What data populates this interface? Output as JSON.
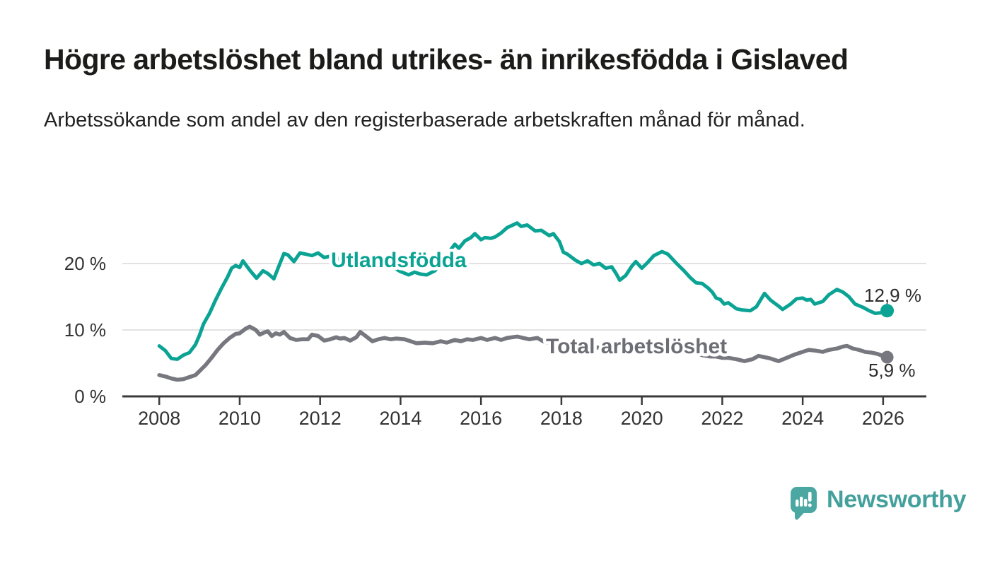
{
  "header": {
    "title": "Högre arbetslöshet bland utrikes- än inrikesfödda i Gislaved",
    "subtitle": "Arbetssökande som andel av den registerbaserade arbetskraften månad för månad."
  },
  "branding": {
    "wordmark": "Newsworthy",
    "logo_icon": "speech-bubble-bar-chart-icon",
    "brand_color": "#4aa7a2"
  },
  "chart_data": {
    "type": "line",
    "title": "Högre arbetslöshet bland utrikes- än inrikesfödda i Gislaved",
    "subtitle": "Arbetssökande som andel av den registerbaserade arbetskraften månad för månad.",
    "unit": "%",
    "legend_position": "inline-labels",
    "grid": true,
    "x_axis": {
      "ticks": [
        2008,
        2010,
        2012,
        2014,
        2016,
        2018,
        2020,
        2022,
        2024,
        2026
      ],
      "range": [
        2007.1,
        2027.1
      ]
    },
    "y_axis": {
      "ticks": [
        {
          "value": 0,
          "label": "0 %"
        },
        {
          "value": 10,
          "label": "10 %"
        },
        {
          "value": 20,
          "label": "20 %"
        }
      ],
      "range": [
        0,
        28
      ]
    },
    "colors": {
      "axis": "#3a3a3a",
      "gridline": "#d9d9d9",
      "value_label": "#2d2d2d"
    },
    "series": [
      {
        "name": "Utlandsfödda",
        "color": "#0ba394",
        "end_value": 12.9,
        "end_label": "12,9 %",
        "points": [
          [
            2008.0,
            7.6
          ],
          [
            2008.15,
            6.9
          ],
          [
            2008.3,
            5.7
          ],
          [
            2008.45,
            5.6
          ],
          [
            2008.6,
            6.2
          ],
          [
            2008.75,
            6.6
          ],
          [
            2008.9,
            7.8
          ],
          [
            2009.0,
            9.2
          ],
          [
            2009.1,
            10.9
          ],
          [
            2009.25,
            12.5
          ],
          [
            2009.4,
            14.5
          ],
          [
            2009.55,
            16.3
          ],
          [
            2009.7,
            18.0
          ],
          [
            2009.8,
            19.3
          ],
          [
            2009.9,
            19.7
          ],
          [
            2010.0,
            19.4
          ],
          [
            2010.08,
            20.4
          ],
          [
            2010.25,
            19.0
          ],
          [
            2010.42,
            17.8
          ],
          [
            2010.58,
            18.9
          ],
          [
            2010.7,
            18.5
          ],
          [
            2010.85,
            17.7
          ],
          [
            2011.0,
            20.0
          ],
          [
            2011.1,
            21.5
          ],
          [
            2011.2,
            21.3
          ],
          [
            2011.35,
            20.3
          ],
          [
            2011.5,
            21.6
          ],
          [
            2011.65,
            21.4
          ],
          [
            2011.8,
            21.2
          ],
          [
            2011.95,
            21.6
          ],
          [
            2012.1,
            20.9
          ],
          [
            2012.25,
            21.1
          ],
          [
            2012.4,
            20.4
          ],
          [
            2012.55,
            21.2
          ],
          [
            2012.7,
            20.9
          ],
          [
            2012.85,
            20.5
          ],
          [
            2013.0,
            21.0
          ],
          [
            2013.2,
            20.6
          ],
          [
            2013.4,
            20.1
          ],
          [
            2013.55,
            20.4
          ],
          [
            2013.7,
            19.8
          ],
          [
            2013.85,
            19.3
          ],
          [
            2014.0,
            18.8
          ],
          [
            2014.2,
            18.3
          ],
          [
            2014.35,
            18.7
          ],
          [
            2014.5,
            18.4
          ],
          [
            2014.65,
            18.3
          ],
          [
            2014.85,
            18.9
          ],
          [
            2015.0,
            19.8
          ],
          [
            2015.1,
            20.6
          ],
          [
            2015.25,
            22.1
          ],
          [
            2015.35,
            22.9
          ],
          [
            2015.45,
            22.3
          ],
          [
            2015.6,
            23.4
          ],
          [
            2015.75,
            23.9
          ],
          [
            2015.85,
            24.5
          ],
          [
            2016.0,
            23.6
          ],
          [
            2016.1,
            23.9
          ],
          [
            2016.25,
            23.8
          ],
          [
            2016.35,
            24.0
          ],
          [
            2016.5,
            24.6
          ],
          [
            2016.65,
            25.4
          ],
          [
            2016.9,
            26.1
          ],
          [
            2017.0,
            25.6
          ],
          [
            2017.15,
            25.8
          ],
          [
            2017.35,
            24.9
          ],
          [
            2017.5,
            25.0
          ],
          [
            2017.7,
            24.2
          ],
          [
            2017.8,
            24.5
          ],
          [
            2017.95,
            23.3
          ],
          [
            2018.05,
            21.7
          ],
          [
            2018.15,
            21.4
          ],
          [
            2018.35,
            20.5
          ],
          [
            2018.5,
            20.0
          ],
          [
            2018.65,
            20.4
          ],
          [
            2018.8,
            19.8
          ],
          [
            2018.95,
            20.0
          ],
          [
            2019.1,
            19.3
          ],
          [
            2019.25,
            19.5
          ],
          [
            2019.35,
            18.6
          ],
          [
            2019.45,
            17.5
          ],
          [
            2019.6,
            18.2
          ],
          [
            2019.75,
            19.6
          ],
          [
            2019.85,
            20.3
          ],
          [
            2020.0,
            19.3
          ],
          [
            2020.15,
            20.2
          ],
          [
            2020.3,
            21.2
          ],
          [
            2020.5,
            21.8
          ],
          [
            2020.65,
            21.4
          ],
          [
            2020.85,
            20.1
          ],
          [
            2021.05,
            18.9
          ],
          [
            2021.2,
            17.9
          ],
          [
            2021.35,
            17.1
          ],
          [
            2021.5,
            17.0
          ],
          [
            2021.65,
            16.3
          ],
          [
            2021.75,
            15.7
          ],
          [
            2021.85,
            14.8
          ],
          [
            2021.95,
            14.6
          ],
          [
            2022.05,
            13.9
          ],
          [
            2022.15,
            14.1
          ],
          [
            2022.35,
            13.2
          ],
          [
            2022.5,
            13.0
          ],
          [
            2022.7,
            12.9
          ],
          [
            2022.85,
            13.5
          ],
          [
            2023.05,
            15.5
          ],
          [
            2023.2,
            14.5
          ],
          [
            2023.4,
            13.6
          ],
          [
            2023.5,
            13.1
          ],
          [
            2023.7,
            13.9
          ],
          [
            2023.85,
            14.7
          ],
          [
            2024.0,
            14.8
          ],
          [
            2024.1,
            14.5
          ],
          [
            2024.2,
            14.6
          ],
          [
            2024.3,
            13.9
          ],
          [
            2024.5,
            14.3
          ],
          [
            2024.65,
            15.3
          ],
          [
            2024.85,
            16.1
          ],
          [
            2025.0,
            15.7
          ],
          [
            2025.15,
            15.0
          ],
          [
            2025.3,
            13.9
          ],
          [
            2025.5,
            13.4
          ],
          [
            2025.65,
            12.9
          ],
          [
            2025.8,
            12.5
          ],
          [
            2025.95,
            12.6
          ],
          [
            2026.1,
            12.9
          ]
        ]
      },
      {
        "name": "Total arbetslöshet",
        "color": "#77777f",
        "end_value": 5.9,
        "end_label": "5,9 %",
        "points": [
          [
            2008.0,
            3.2
          ],
          [
            2008.15,
            3.0
          ],
          [
            2008.3,
            2.7
          ],
          [
            2008.45,
            2.5
          ],
          [
            2008.6,
            2.6
          ],
          [
            2008.75,
            2.9
          ],
          [
            2008.9,
            3.2
          ],
          [
            2009.0,
            3.8
          ],
          [
            2009.15,
            4.7
          ],
          [
            2009.3,
            5.8
          ],
          [
            2009.45,
            7.0
          ],
          [
            2009.6,
            8.0
          ],
          [
            2009.75,
            8.8
          ],
          [
            2009.9,
            9.4
          ],
          [
            2010.0,
            9.5
          ],
          [
            2010.15,
            10.2
          ],
          [
            2010.25,
            10.5
          ],
          [
            2010.4,
            10.0
          ],
          [
            2010.5,
            9.3
          ],
          [
            2010.6,
            9.6
          ],
          [
            2010.7,
            9.8
          ],
          [
            2010.8,
            9.1
          ],
          [
            2010.9,
            9.5
          ],
          [
            2011.0,
            9.3
          ],
          [
            2011.1,
            9.7
          ],
          [
            2011.25,
            8.8
          ],
          [
            2011.4,
            8.5
          ],
          [
            2011.55,
            8.6
          ],
          [
            2011.7,
            8.6
          ],
          [
            2011.8,
            9.3
          ],
          [
            2011.95,
            9.1
          ],
          [
            2012.1,
            8.4
          ],
          [
            2012.25,
            8.6
          ],
          [
            2012.4,
            8.9
          ],
          [
            2012.5,
            8.7
          ],
          [
            2012.6,
            8.8
          ],
          [
            2012.75,
            8.4
          ],
          [
            2012.9,
            8.9
          ],
          [
            2013.0,
            9.7
          ],
          [
            2013.15,
            9.0
          ],
          [
            2013.3,
            8.3
          ],
          [
            2013.45,
            8.6
          ],
          [
            2013.6,
            8.8
          ],
          [
            2013.75,
            8.6
          ],
          [
            2013.9,
            8.7
          ],
          [
            2014.1,
            8.6
          ],
          [
            2014.25,
            8.3
          ],
          [
            2014.4,
            8.0
          ],
          [
            2014.6,
            8.1
          ],
          [
            2014.8,
            8.0
          ],
          [
            2015.0,
            8.3
          ],
          [
            2015.15,
            8.1
          ],
          [
            2015.35,
            8.5
          ],
          [
            2015.5,
            8.3
          ],
          [
            2015.65,
            8.6
          ],
          [
            2015.8,
            8.5
          ],
          [
            2016.0,
            8.8
          ],
          [
            2016.15,
            8.5
          ],
          [
            2016.35,
            8.8
          ],
          [
            2016.5,
            8.5
          ],
          [
            2016.65,
            8.8
          ],
          [
            2016.9,
            9.0
          ],
          [
            2017.05,
            8.8
          ],
          [
            2017.2,
            8.6
          ],
          [
            2017.4,
            8.8
          ],
          [
            2017.55,
            8.3
          ],
          [
            2017.75,
            7.9
          ],
          [
            2017.9,
            8.3
          ],
          [
            2018.05,
            8.0
          ],
          [
            2018.3,
            7.8
          ],
          [
            2018.55,
            7.6
          ],
          [
            2018.8,
            7.4
          ],
          [
            2019.0,
            7.3
          ],
          [
            2019.3,
            7.1
          ],
          [
            2019.5,
            7.0
          ],
          [
            2019.75,
            7.2
          ],
          [
            2020.0,
            7.5
          ],
          [
            2020.25,
            7.9
          ],
          [
            2020.5,
            8.1
          ],
          [
            2020.75,
            7.7
          ],
          [
            2021.0,
            7.1
          ],
          [
            2021.25,
            6.6
          ],
          [
            2021.5,
            6.2
          ],
          [
            2021.7,
            6.0
          ],
          [
            2021.85,
            6.0
          ],
          [
            2022.0,
            5.8
          ],
          [
            2022.15,
            5.8
          ],
          [
            2022.35,
            5.6
          ],
          [
            2022.55,
            5.3
          ],
          [
            2022.75,
            5.6
          ],
          [
            2022.9,
            6.1
          ],
          [
            2023.05,
            5.9
          ],
          [
            2023.2,
            5.7
          ],
          [
            2023.4,
            5.3
          ],
          [
            2023.6,
            5.8
          ],
          [
            2023.8,
            6.3
          ],
          [
            2024.0,
            6.7
          ],
          [
            2024.15,
            7.0
          ],
          [
            2024.3,
            6.9
          ],
          [
            2024.5,
            6.7
          ],
          [
            2024.65,
            7.0
          ],
          [
            2024.85,
            7.2
          ],
          [
            2025.0,
            7.5
          ],
          [
            2025.1,
            7.6
          ],
          [
            2025.25,
            7.2
          ],
          [
            2025.4,
            7.0
          ],
          [
            2025.55,
            6.7
          ],
          [
            2025.7,
            6.6
          ],
          [
            2025.85,
            6.4
          ],
          [
            2026.0,
            6.1
          ],
          [
            2026.1,
            5.9
          ]
        ]
      }
    ]
  }
}
